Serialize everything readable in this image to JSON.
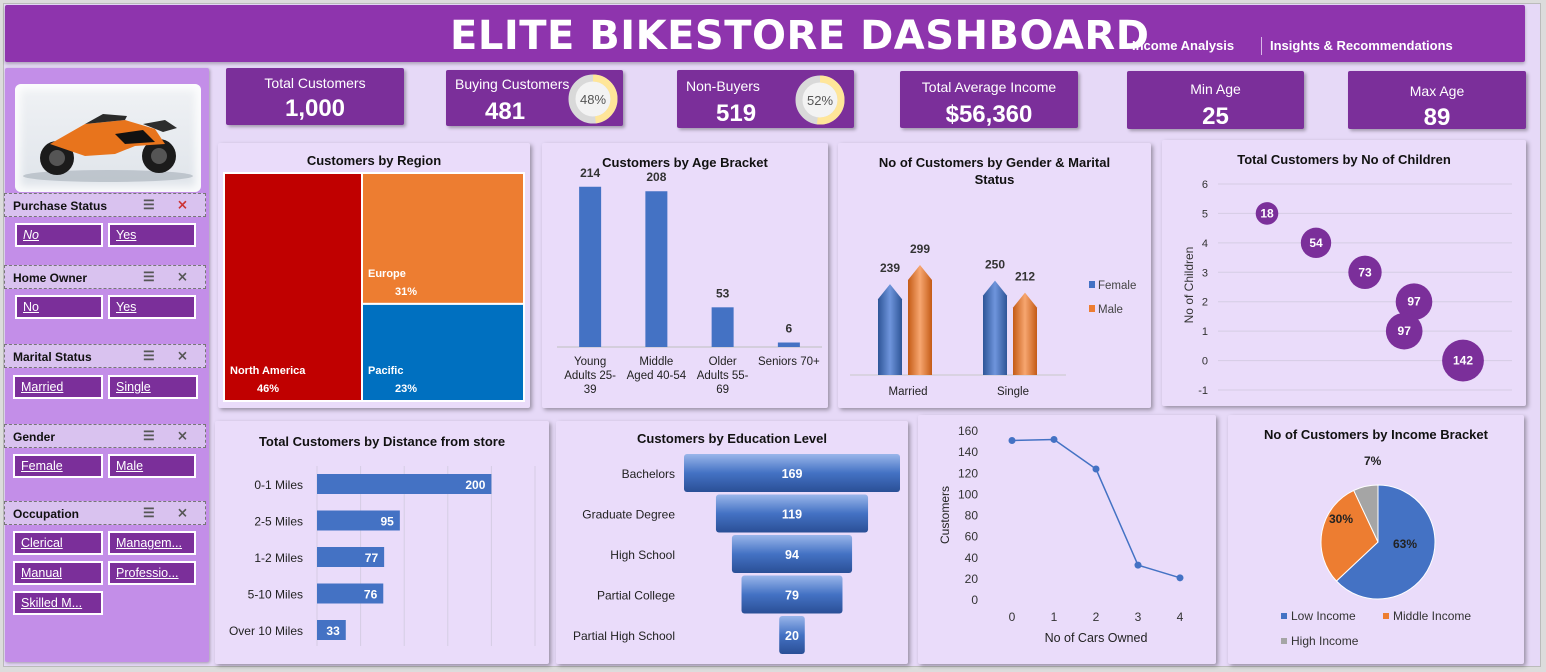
{
  "header": {
    "title": "ELITE BIKESTORE DASHBOARD",
    "nav": [
      "Income Analysis",
      "Insights & Recommendations"
    ]
  },
  "colors": {
    "purple_dark": "#7b2f9a",
    "purple_header": "#8e34ad",
    "panel_bg": "#eadcfa",
    "blue": "#4472c4",
    "orange": "#ed7d31",
    "red": "#c00000",
    "pacific_blue": "#0070c0",
    "gray": "#a5a5a5"
  },
  "kpis": {
    "total_customers": {
      "label": "Total Customers",
      "value": "1,000"
    },
    "buying_customers": {
      "label": "Buying Customers",
      "value": "481",
      "ring": "48%",
      "ring_fraction": 0.48
    },
    "non_buyers": {
      "label": "Non-Buyers",
      "value": "519",
      "ring": "52%",
      "ring_fraction": 0.52
    },
    "avg_income": {
      "label": "Total Average Income",
      "value": "$56,360"
    },
    "min_age": {
      "label": "Min Age",
      "value": "25"
    },
    "max_age": {
      "label": "Max Age",
      "value": "89"
    }
  },
  "slicers": [
    {
      "title": "Purchase Status",
      "options": [
        "No",
        "Yes"
      ]
    },
    {
      "title": "Home Owner",
      "options": [
        "No",
        "Yes"
      ]
    },
    {
      "title": "Marital Status",
      "options": [
        "Married",
        "Single"
      ]
    },
    {
      "title": "Gender",
      "options": [
        "Female",
        "Male"
      ]
    },
    {
      "title": "Occupation",
      "options": [
        "Clerical",
        "Managem...",
        "Manual",
        "Professio...",
        "Skilled M..."
      ]
    }
  ],
  "chart_data": [
    {
      "type": "treemap",
      "title": "Customers by Region",
      "items": [
        {
          "name": "North America",
          "label": "46%",
          "value": 46,
          "color": "#c00000"
        },
        {
          "name": "Europe",
          "label": "31%",
          "value": 31,
          "color": "#ed7d31"
        },
        {
          "name": "Pacific",
          "label": "23%",
          "value": 23,
          "color": "#0070c0"
        }
      ]
    },
    {
      "type": "bar",
      "title": "Customers by Age Bracket",
      "categories": [
        "Young Adults 25-39",
        "Middle Aged 40-54",
        "Older Adults 55-69",
        "Seniors 70+"
      ],
      "category_lines": [
        [
          "Young",
          "Adults 25-",
          "39"
        ],
        [
          "Middle",
          "Aged 40-54"
        ],
        [
          "Older",
          "Adults 55-",
          "69"
        ],
        [
          "Seniors 70+"
        ]
      ],
      "values": [
        214,
        208,
        53,
        6
      ],
      "ylim": [
        0,
        250
      ]
    },
    {
      "type": "bar",
      "title": "No of Customers by Gender & Marital Status",
      "title_lines": [
        "No of Customers by Gender & Marital",
        "Status"
      ],
      "categories": [
        "Married",
        "Single"
      ],
      "series": [
        {
          "name": "Female",
          "values": [
            239,
            250
          ],
          "color": "#4472c4"
        },
        {
          "name": "Male",
          "values": [
            299,
            212
          ],
          "color": "#ed7d31"
        }
      ],
      "ylim": [
        0,
        350
      ]
    },
    {
      "type": "scatter",
      "title": "Total Customers by No of Children",
      "ylabel": "No of Children",
      "yticks": [
        6,
        5,
        4,
        3,
        2,
        1,
        0,
        -1
      ],
      "ylim": [
        -1,
        6
      ],
      "points": [
        {
          "x": 1,
          "y": 5,
          "size": 18
        },
        {
          "x": 2,
          "y": 4,
          "size": 54
        },
        {
          "x": 3,
          "y": 3,
          "size": 73
        },
        {
          "x": 4,
          "y": 2,
          "size": 97
        },
        {
          "x": 3.8,
          "y": 1,
          "size": 97
        },
        {
          "x": 5,
          "y": 0,
          "size": 142
        }
      ],
      "xlim": [
        0,
        6
      ]
    },
    {
      "type": "bar",
      "orientation": "horizontal",
      "title": "Total Customers by Distance from store",
      "categories": [
        "0-1 Miles",
        "2-5 Miles",
        "1-2 Miles",
        "5-10 Miles",
        "Over 10 Miles"
      ],
      "values": [
        200,
        95,
        77,
        76,
        33
      ],
      "xlim": [
        0,
        250
      ]
    },
    {
      "type": "funnel",
      "title": "Customers by Education Level",
      "categories": [
        "Bachelors",
        "Graduate Degree",
        "High School",
        "Partial College",
        "Partial High School"
      ],
      "values": [
        169,
        119,
        94,
        79,
        20
      ]
    },
    {
      "type": "line",
      "title": "",
      "xlabel": "No of Cars Owned",
      "ylabel": "Customers",
      "x": [
        0,
        1,
        2,
        3,
        4
      ],
      "y": [
        151,
        152,
        124,
        33,
        21
      ],
      "yticks": [
        160,
        140,
        120,
        100,
        80,
        60,
        40,
        20,
        0
      ],
      "ylim": [
        0,
        160
      ]
    },
    {
      "type": "pie",
      "title": "No of Customers by Income Bracket",
      "slices": [
        {
          "name": "Low Income",
          "value": 63,
          "label": "63%",
          "color": "#4472c4"
        },
        {
          "name": "Middle Income",
          "value": 30,
          "label": "30%",
          "color": "#ed7d31"
        },
        {
          "name": "High Income",
          "value": 7,
          "label": "7%",
          "color": "#a5a5a5"
        }
      ],
      "legend": "bottom"
    }
  ]
}
